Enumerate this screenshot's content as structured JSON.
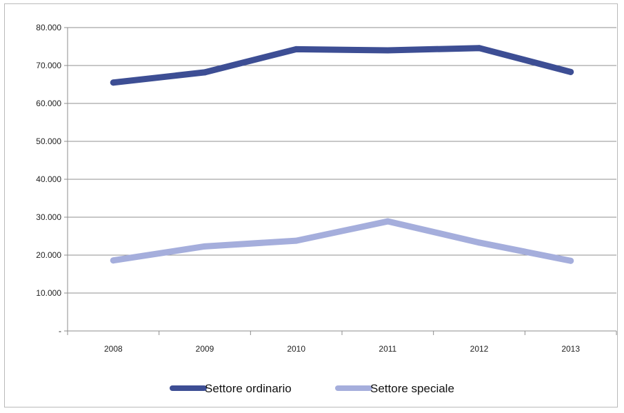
{
  "chart_data": {
    "type": "line",
    "title": "",
    "xlabel": "",
    "ylabel": "",
    "categories": [
      "2008",
      "2009",
      "2010",
      "2011",
      "2012",
      "2013"
    ],
    "ylim": [
      0,
      80000
    ],
    "y_ticks": [
      0,
      10000,
      20000,
      30000,
      40000,
      50000,
      60000,
      70000,
      80000
    ],
    "y_tick_labels": [
      "-",
      "10.000",
      "20.000",
      "30.000",
      "40.000",
      "50.000",
      "60.000",
      "70.000",
      "80.000"
    ],
    "grid": "horizontal",
    "legend_position": "bottom",
    "series": [
      {
        "name": "Settore ordinario",
        "color": "#3d4e94",
        "values": [
          65500,
          68200,
          74300,
          74000,
          74600,
          68300
        ]
      },
      {
        "name": "Settore speciale",
        "color": "#a5aedc",
        "values": [
          18600,
          22300,
          23800,
          28900,
          23300,
          18500
        ]
      }
    ]
  }
}
